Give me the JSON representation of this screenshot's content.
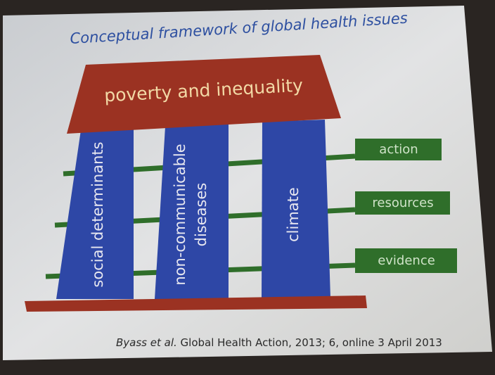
{
  "title": "Conceptual framework of global health issues",
  "roof": "poverty and inequality",
  "pillars": [
    {
      "lines": [
        "social determinants"
      ]
    },
    {
      "lines": [
        "non-communicable",
        "diseases"
      ]
    },
    {
      "lines": [
        "climate"
      ]
    }
  ],
  "bars": [
    "action",
    "resources",
    "evidence"
  ],
  "citation": {
    "authors": "Byass et al.",
    "rest": " Global Health Action, 2013; 6, online 3 April 2013"
  }
}
